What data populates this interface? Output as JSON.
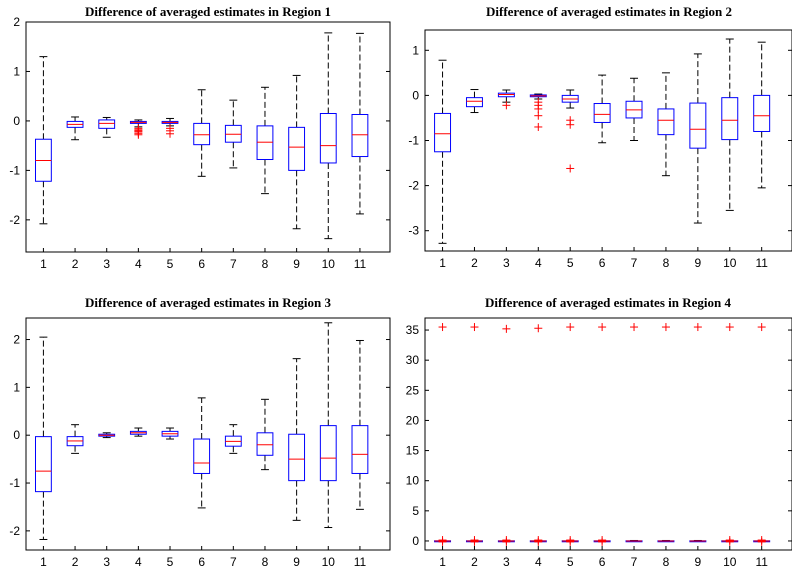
{
  "chart_data": [
    {
      "type": "box",
      "title": "Difference of averaged estimates in Region 1",
      "xlabel": "",
      "ylabel": "",
      "categories": [
        "1",
        "2",
        "3",
        "4",
        "5",
        "6",
        "7",
        "8",
        "9",
        "10",
        "11"
      ],
      "ylim": [
        -2.65,
        2.0
      ],
      "yticks": [
        -2,
        -1,
        0,
        1,
        2
      ],
      "boxes": [
        {
          "min": -2.08,
          "q1": -1.22,
          "median": -0.8,
          "q3": -0.37,
          "max": 1.3,
          "outliers": []
        },
        {
          "min": -0.38,
          "q1": -0.13,
          "median": -0.07,
          "q3": -0.01,
          "max": 0.08,
          "outliers": []
        },
        {
          "min": -0.33,
          "q1": -0.15,
          "median": -0.05,
          "q3": 0.02,
          "max": 0.07,
          "outliers": []
        },
        {
          "min": -0.12,
          "q1": -0.05,
          "median": -0.03,
          "q3": -0.01,
          "max": 0.02,
          "outliers": [
            -0.15,
            -0.18,
            -0.2,
            -0.22,
            -0.25,
            -0.28
          ]
        },
        {
          "min": -0.1,
          "q1": -0.05,
          "median": -0.03,
          "q3": -0.01,
          "max": 0.05,
          "outliers": [
            -0.15,
            -0.2,
            -0.26
          ]
        },
        {
          "min": -1.12,
          "q1": -0.48,
          "median": -0.28,
          "q3": -0.05,
          "max": 0.63,
          "outliers": []
        },
        {
          "min": -0.95,
          "q1": -0.43,
          "median": -0.27,
          "q3": -0.09,
          "max": 0.42,
          "outliers": []
        },
        {
          "min": -1.47,
          "q1": -0.78,
          "median": -0.43,
          "q3": -0.1,
          "max": 0.68,
          "outliers": []
        },
        {
          "min": -2.18,
          "q1": -1.0,
          "median": -0.53,
          "q3": -0.13,
          "max": 0.92,
          "outliers": []
        },
        {
          "min": -2.38,
          "q1": -0.85,
          "median": -0.5,
          "q3": 0.15,
          "max": 1.78,
          "outliers": []
        },
        {
          "min": -1.88,
          "q1": -0.72,
          "median": -0.28,
          "q3": 0.13,
          "max": 1.77,
          "outliers": []
        }
      ]
    },
    {
      "type": "box",
      "title": "Difference of averaged estimates in Region 2",
      "xlabel": "",
      "ylabel": "",
      "categories": [
        "1",
        "2",
        "3",
        "4",
        "5",
        "6",
        "7",
        "8",
        "9",
        "10",
        "11"
      ],
      "ylim": [
        -3.45,
        1.45
      ],
      "yticks": [
        -3,
        -2,
        -1,
        0,
        1
      ],
      "boxes": [
        {
          "min": -3.28,
          "q1": -1.25,
          "median": -0.85,
          "q3": -0.4,
          "max": 0.78,
          "outliers": []
        },
        {
          "min": -0.38,
          "q1": -0.25,
          "median": -0.13,
          "q3": -0.05,
          "max": 0.13,
          "outliers": []
        },
        {
          "min": -0.15,
          "q1": -0.03,
          "median": 0.02,
          "q3": 0.05,
          "max": 0.12,
          "outliers": [
            -0.22
          ]
        },
        {
          "min": -0.08,
          "q1": -0.03,
          "median": -0.01,
          "q3": 0.01,
          "max": 0.03,
          "outliers": [
            -0.15,
            -0.22,
            -0.3,
            -0.45,
            -0.7
          ]
        },
        {
          "min": -0.28,
          "q1": -0.15,
          "median": -0.08,
          "q3": 0.0,
          "max": 0.12,
          "outliers": [
            -0.55,
            -0.65,
            -1.62
          ]
        },
        {
          "min": -1.05,
          "q1": -0.6,
          "median": -0.42,
          "q3": -0.18,
          "max": 0.45,
          "outliers": []
        },
        {
          "min": -1.0,
          "q1": -0.5,
          "median": -0.32,
          "q3": -0.13,
          "max": 0.38,
          "outliers": []
        },
        {
          "min": -1.78,
          "q1": -0.87,
          "median": -0.55,
          "q3": -0.3,
          "max": 0.5,
          "outliers": []
        },
        {
          "min": -2.83,
          "q1": -1.17,
          "median": -0.75,
          "q3": -0.17,
          "max": 0.92,
          "outliers": []
        },
        {
          "min": -2.55,
          "q1": -0.98,
          "median": -0.55,
          "q3": -0.05,
          "max": 1.25,
          "outliers": []
        },
        {
          "min": -2.05,
          "q1": -0.8,
          "median": -0.45,
          "q3": 0.0,
          "max": 1.18,
          "outliers": []
        }
      ]
    },
    {
      "type": "box",
      "title": "Difference of averaged estimates in Region 3",
      "xlabel": "",
      "ylabel": "",
      "categories": [
        "1",
        "2",
        "3",
        "4",
        "5",
        "6",
        "7",
        "8",
        "9",
        "10",
        "11"
      ],
      "ylim": [
        -2.4,
        2.45
      ],
      "yticks": [
        -2,
        -1,
        0,
        1,
        2
      ],
      "boxes": [
        {
          "min": -2.18,
          "q1": -1.18,
          "median": -0.75,
          "q3": -0.03,
          "max": 2.05,
          "outliers": []
        },
        {
          "min": -0.38,
          "q1": -0.22,
          "median": -0.12,
          "q3": -0.03,
          "max": 0.22,
          "outliers": []
        },
        {
          "min": -0.05,
          "q1": -0.02,
          "median": 0.0,
          "q3": 0.02,
          "max": 0.05,
          "outliers": []
        },
        {
          "min": -0.02,
          "q1": 0.02,
          "median": 0.05,
          "q3": 0.08,
          "max": 0.15,
          "outliers": []
        },
        {
          "min": -0.08,
          "q1": -0.02,
          "median": 0.03,
          "q3": 0.08,
          "max": 0.15,
          "outliers": []
        },
        {
          "min": -1.52,
          "q1": -0.8,
          "median": -0.58,
          "q3": -0.08,
          "max": 0.78,
          "outliers": []
        },
        {
          "min": -0.38,
          "q1": -0.23,
          "median": -0.13,
          "q3": -0.02,
          "max": 0.22,
          "outliers": []
        },
        {
          "min": -0.72,
          "q1": -0.42,
          "median": -0.2,
          "q3": 0.05,
          "max": 0.75,
          "outliers": []
        },
        {
          "min": -1.78,
          "q1": -0.95,
          "median": -0.5,
          "q3": 0.02,
          "max": 1.6,
          "outliers": []
        },
        {
          "min": -1.93,
          "q1": -0.95,
          "median": -0.48,
          "q3": 0.2,
          "max": 2.35,
          "outliers": []
        },
        {
          "min": -1.55,
          "q1": -0.8,
          "median": -0.4,
          "q3": 0.2,
          "max": 1.98,
          "outliers": []
        }
      ]
    },
    {
      "type": "box",
      "title": "Difference of averaged estimates in Region 4",
      "xlabel": "",
      "ylabel": "",
      "categories": [
        "1",
        "2",
        "3",
        "4",
        "5",
        "6",
        "7",
        "8",
        "9",
        "10",
        "11"
      ],
      "ylim": [
        -1.5,
        37.0
      ],
      "yticks": [
        0,
        5,
        10,
        15,
        20,
        25,
        30,
        35
      ],
      "boxes": [
        {
          "min": -0.08,
          "q1": -0.03,
          "median": 0.0,
          "q3": 0.03,
          "max": 0.08,
          "outliers": [
            35.5,
            0.15,
            -0.15
          ]
        },
        {
          "min": -0.08,
          "q1": -0.03,
          "median": 0.0,
          "q3": 0.03,
          "max": 0.08,
          "outliers": [
            35.5,
            0.15,
            -0.15
          ]
        },
        {
          "min": -0.08,
          "q1": -0.03,
          "median": 0.0,
          "q3": 0.03,
          "max": 0.08,
          "outliers": [
            35.2,
            0.15,
            -0.15
          ]
        },
        {
          "min": -0.08,
          "q1": -0.03,
          "median": 0.0,
          "q3": 0.03,
          "max": 0.08,
          "outliers": [
            35.3,
            0.15,
            -0.15
          ]
        },
        {
          "min": -0.08,
          "q1": -0.03,
          "median": 0.0,
          "q3": 0.03,
          "max": 0.08,
          "outliers": [
            35.5,
            0.15,
            -0.15
          ]
        },
        {
          "min": -0.08,
          "q1": -0.03,
          "median": 0.0,
          "q3": 0.03,
          "max": 0.08,
          "outliers": [
            35.5,
            0.15,
            -0.15
          ]
        },
        {
          "min": -0.08,
          "q1": -0.03,
          "median": 0.0,
          "q3": 0.03,
          "max": 0.08,
          "outliers": [
            35.5
          ]
        },
        {
          "min": -0.08,
          "q1": -0.03,
          "median": 0.0,
          "q3": 0.03,
          "max": 0.08,
          "outliers": [
            35.5
          ]
        },
        {
          "min": -0.08,
          "q1": -0.03,
          "median": 0.0,
          "q3": 0.03,
          "max": 0.08,
          "outliers": [
            35.5
          ]
        },
        {
          "min": -0.08,
          "q1": -0.03,
          "median": 0.0,
          "q3": 0.03,
          "max": 0.08,
          "outliers": [
            35.5,
            0.15,
            -0.15
          ]
        },
        {
          "min": -0.08,
          "q1": -0.03,
          "median": 0.0,
          "q3": 0.03,
          "max": 0.08,
          "outliers": [
            35.5,
            0.15,
            -0.15
          ]
        }
      ]
    }
  ],
  "colors": {
    "box": "#0000ff",
    "median": "#ff0000",
    "whisker": "#000000",
    "outlier": "#ff0000",
    "axis": "#000000"
  }
}
